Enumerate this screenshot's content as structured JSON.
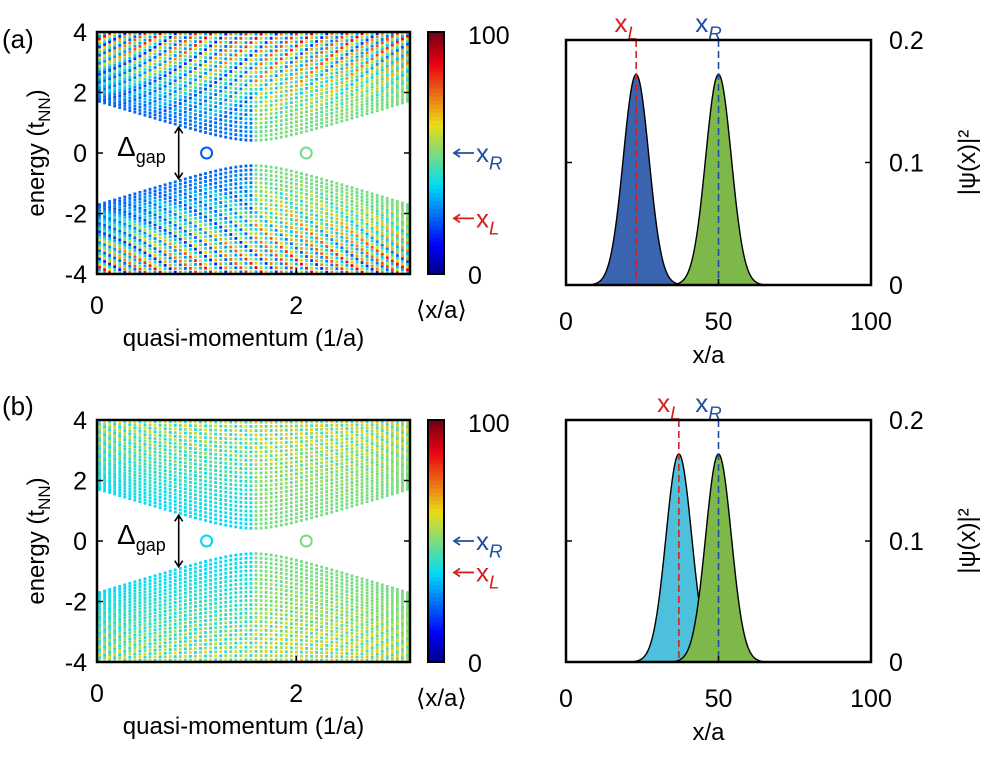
{
  "panels": [
    {
      "label": "(a)",
      "band": {
        "xlabel": "quasi-momentum (1/a)",
        "ylabel": "energy (t",
        "ylabel_sub": "NN",
        "ylabel_close": ")",
        "xlim": [
          0,
          3.1416
        ],
        "ylim": [
          -4,
          4
        ],
        "xticks": [
          "0",
          "2"
        ],
        "yticks": [
          "4",
          "2",
          "0",
          "-2",
          "-4"
        ],
        "gap_label": "Δ",
        "gap_sub": "gap",
        "gap": 0.35,
        "state_L_k": 1.1,
        "state_R_k": 2.1
      },
      "colorbar": {
        "label": "⟨x/a⟩",
        "ticks": [
          "100",
          "0"
        ],
        "arrows": [
          {
            "text": "x",
            "sub": "R",
            "value": 50,
            "color": "#1f4fa0"
          },
          {
            "text": "x",
            "sub": "L",
            "value": 23,
            "color": "#d62020"
          }
        ]
      },
      "wave": {
        "xlabel": "x/a",
        "ylabel": "|ψ(x)|²",
        "xlim": [
          0,
          100
        ],
        "ylim": [
          0,
          0.2
        ],
        "xticks": [
          "0",
          "50",
          "100"
        ],
        "yticks": [
          "0.2",
          "0.1",
          "0"
        ],
        "markers": [
          {
            "text": "x",
            "sub": "L",
            "x": 23,
            "color": "#d62020"
          },
          {
            "text": "x",
            "sub": "R",
            "x": 50,
            "color": "#1f4fa0"
          }
        ],
        "peaks": [
          {
            "center": 23,
            "height": 0.172,
            "width": 4.2,
            "fill": "#3a63b0"
          },
          {
            "center": 50,
            "height": 0.172,
            "width": 4.2,
            "fill": "#7fb84a"
          }
        ]
      }
    },
    {
      "label": "(b)",
      "band": {
        "xlabel": "quasi-momentum (1/a)",
        "ylabel": "energy (t",
        "ylabel_sub": "NN",
        "ylabel_close": ")",
        "xlim": [
          0,
          3.1416
        ],
        "ylim": [
          -4,
          4
        ],
        "xticks": [
          "0",
          "2"
        ],
        "yticks": [
          "4",
          "2",
          "0",
          "-2",
          "-4"
        ],
        "gap_label": "Δ",
        "gap_sub": "gap",
        "gap": 0.35,
        "state_L_k": 1.1,
        "state_R_k": 2.1
      },
      "colorbar": {
        "label": "⟨x/a⟩",
        "ticks": [
          "100",
          "0"
        ],
        "arrows": [
          {
            "text": "x",
            "sub": "R",
            "value": 50,
            "color": "#1f4fa0"
          },
          {
            "text": "x",
            "sub": "L",
            "value": 37,
            "color": "#d62020"
          }
        ]
      },
      "wave": {
        "xlabel": "x/a",
        "ylabel": "|ψ(x)|²",
        "xlim": [
          0,
          100
        ],
        "ylim": [
          0,
          0.2
        ],
        "xticks": [
          "0",
          "50",
          "100"
        ],
        "yticks": [
          "0.2",
          "0.1",
          "0"
        ],
        "markers": [
          {
            "text": "x",
            "sub": "L",
            "x": 37,
            "color": "#d62020"
          },
          {
            "text": "x",
            "sub": "R",
            "x": 50,
            "color": "#1f4fa0"
          }
        ],
        "peaks": [
          {
            "center": 37,
            "height": 0.172,
            "width": 4.2,
            "fill": "#4fc0dc"
          },
          {
            "center": 50,
            "height": 0.172,
            "width": 4.2,
            "fill": "#7fb84a"
          }
        ]
      }
    }
  ],
  "chart_data": [
    {
      "type": "scatter",
      "panel": "(a)",
      "xlabel": "quasi-momentum (1/a)",
      "ylabel": "energy (tNN)",
      "xlim": [
        0,
        3.1416
      ],
      "ylim": [
        -4,
        4
      ],
      "colorbar_label": "⟨x/a⟩",
      "colorbar_range": [
        0,
        100
      ],
      "annotations": [
        "Δgap",
        "xR",
        "xL"
      ]
    },
    {
      "type": "area",
      "panel": "(a)",
      "xlabel": "x/a",
      "ylabel": "|ψ(x)|²",
      "xlim": [
        0,
        100
      ],
      "ylim": [
        0,
        0.2
      ],
      "series": [
        {
          "name": "xL",
          "x": [
            23
          ],
          "values": [
            0.172
          ]
        },
        {
          "name": "xR",
          "x": [
            50
          ],
          "values": [
            0.172
          ]
        }
      ]
    },
    {
      "type": "scatter",
      "panel": "(b)",
      "xlabel": "quasi-momentum (1/a)",
      "ylabel": "energy (tNN)",
      "xlim": [
        0,
        3.1416
      ],
      "ylim": [
        -4,
        4
      ],
      "colorbar_label": "⟨x/a⟩",
      "colorbar_range": [
        0,
        100
      ],
      "annotations": [
        "Δgap",
        "xR",
        "xL"
      ]
    },
    {
      "type": "area",
      "panel": "(b)",
      "xlabel": "x/a",
      "ylabel": "|ψ(x)|²",
      "xlim": [
        0,
        100
      ],
      "ylim": [
        0,
        0.2
      ],
      "series": [
        {
          "name": "xL",
          "x": [
            37
          ],
          "values": [
            0.172
          ]
        },
        {
          "name": "xR",
          "x": [
            50
          ],
          "values": [
            0.172
          ]
        }
      ]
    }
  ]
}
